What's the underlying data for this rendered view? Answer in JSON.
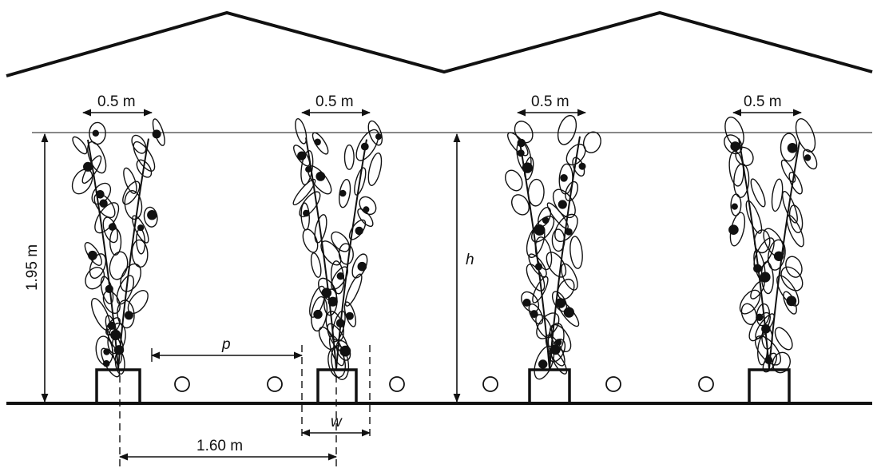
{
  "labels": {
    "width_1": "0.5 m",
    "width_2": "0.5 m",
    "width_3": "0.5 m",
    "width_4": "0.5 m",
    "height_left": "1.95 m",
    "height_mid": "h",
    "path": "p",
    "pot": "w",
    "spacing": "1.60 m"
  },
  "colors": {
    "ink": "#111111",
    "background": "#ffffff"
  },
  "icons": [
    "plant-icon",
    "pot-icon",
    "heating-pipe-icon",
    "greenhouse-roof-icon"
  ]
}
